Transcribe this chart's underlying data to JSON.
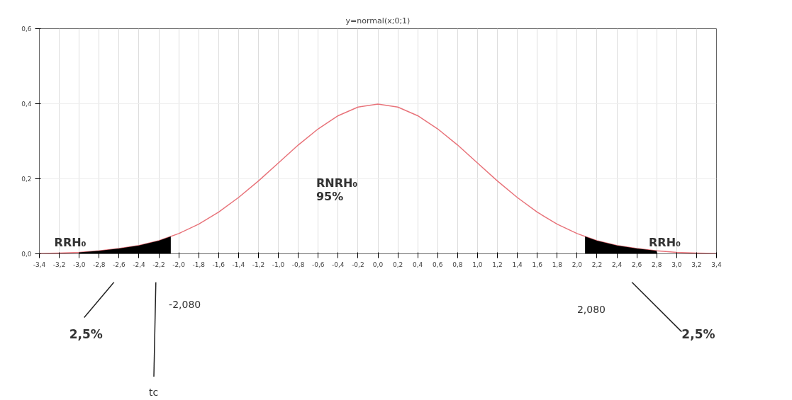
{
  "chart_data": {
    "type": "line",
    "title": "y=normal(x;0;1)",
    "x": [
      -3.4,
      -3.2,
      -3.0,
      -2.8,
      -2.6,
      -2.4,
      -2.2,
      -2.0,
      -1.8,
      -1.6,
      -1.4,
      -1.2,
      -1.0,
      -0.8,
      -0.6,
      -0.4,
      -0.2,
      0.0,
      0.2,
      0.4,
      0.6,
      0.8,
      1.0,
      1.2,
      1.4,
      1.6,
      1.8,
      2.0,
      2.2,
      2.4,
      2.6,
      2.8,
      3.0,
      3.2,
      3.4
    ],
    "series": [
      {
        "color": "#e8737a",
        "values": [
          0.001,
          0.002,
          0.004,
          0.008,
          0.014,
          0.022,
          0.035,
          0.054,
          0.079,
          0.111,
          0.15,
          0.194,
          0.242,
          0.29,
          0.333,
          0.368,
          0.391,
          0.399,
          0.391,
          0.368,
          0.333,
          0.29,
          0.242,
          0.194,
          0.15,
          0.111,
          0.079,
          0.054,
          0.035,
          0.022,
          0.014,
          0.008,
          0.004,
          0.002,
          0.001
        ]
      },
      {
        "type": "area",
        "color": "#000000",
        "x": [
          -3.0,
          -2.8,
          -2.6,
          -2.4,
          -2.2,
          -2.08
        ],
        "values": [
          0.004,
          0.008,
          0.014,
          0.022,
          0.035,
          0.046
        ]
      },
      {
        "type": "area",
        "color": "#000000",
        "x": [
          2.08,
          2.2,
          2.4,
          2.6,
          2.8
        ],
        "values": [
          0.046,
          0.035,
          0.022,
          0.014,
          0.008
        ]
      }
    ],
    "xlim": [
      -3.4,
      3.4
    ],
    "ylim": [
      0,
      0.6
    ],
    "xticks": [
      {
        "value": -3.4,
        "label": "-3,4"
      },
      {
        "value": -3.2,
        "label": "-3,2"
      },
      {
        "value": -3.0,
        "label": "-3,0"
      },
      {
        "value": -2.8,
        "label": "-2,8"
      },
      {
        "value": -2.6,
        "label": "-2,6"
      },
      {
        "value": -2.4,
        "label": "-2,4"
      },
      {
        "value": -2.2,
        "label": "-2,2"
      },
      {
        "value": -2.0,
        "label": "-2,0"
      },
      {
        "value": -1.8,
        "label": "-1,8"
      },
      {
        "value": -1.6,
        "label": "-1,6"
      },
      {
        "value": -1.4,
        "label": "-1,4"
      },
      {
        "value": -1.2,
        "label": "-1,2"
      },
      {
        "value": -1.0,
        "label": "-1,0"
      },
      {
        "value": -0.8,
        "label": "-0,8"
      },
      {
        "value": -0.6,
        "label": "-0,6"
      },
      {
        "value": -0.4,
        "label": "-0,4"
      },
      {
        "value": -0.2,
        "label": "-0,2"
      },
      {
        "value": 0.0,
        "label": "0,0"
      },
      {
        "value": 0.2,
        "label": "0,2"
      },
      {
        "value": 0.4,
        "label": "0,4"
      },
      {
        "value": 0.6,
        "label": "0,6"
      },
      {
        "value": 0.8,
        "label": "0,8"
      },
      {
        "value": 1.0,
        "label": "1,0"
      },
      {
        "value": 1.2,
        "label": "1,2"
      },
      {
        "value": 1.4,
        "label": "1,4"
      },
      {
        "value": 1.6,
        "label": "1,6"
      },
      {
        "value": 1.8,
        "label": "1,8"
      },
      {
        "value": 2.0,
        "label": "2,0"
      },
      {
        "value": 2.2,
        "label": "2,2"
      },
      {
        "value": 2.4,
        "label": "2,4"
      },
      {
        "value": 2.6,
        "label": "2,6"
      },
      {
        "value": 2.8,
        "label": "2,8"
      },
      {
        "value": 3.0,
        "label": "3,0"
      },
      {
        "value": 3.2,
        "label": "3,2"
      },
      {
        "value": 3.4,
        "label": "3,4"
      }
    ],
    "yticks": [
      {
        "value": 0.0,
        "label": "0,0"
      },
      {
        "value": 0.2,
        "label": "0,2"
      },
      {
        "value": 0.4,
        "label": "0,4"
      },
      {
        "value": 0.6,
        "label": "0,6"
      }
    ],
    "grid": true,
    "marker": "none",
    "line_style": "solid",
    "annotations": [
      "RRH₀",
      "RRH₀",
      "RNRH₀",
      "95%",
      "-2,080",
      "2,080",
      "2,5%",
      "2,5%",
      "tc"
    ]
  }
}
